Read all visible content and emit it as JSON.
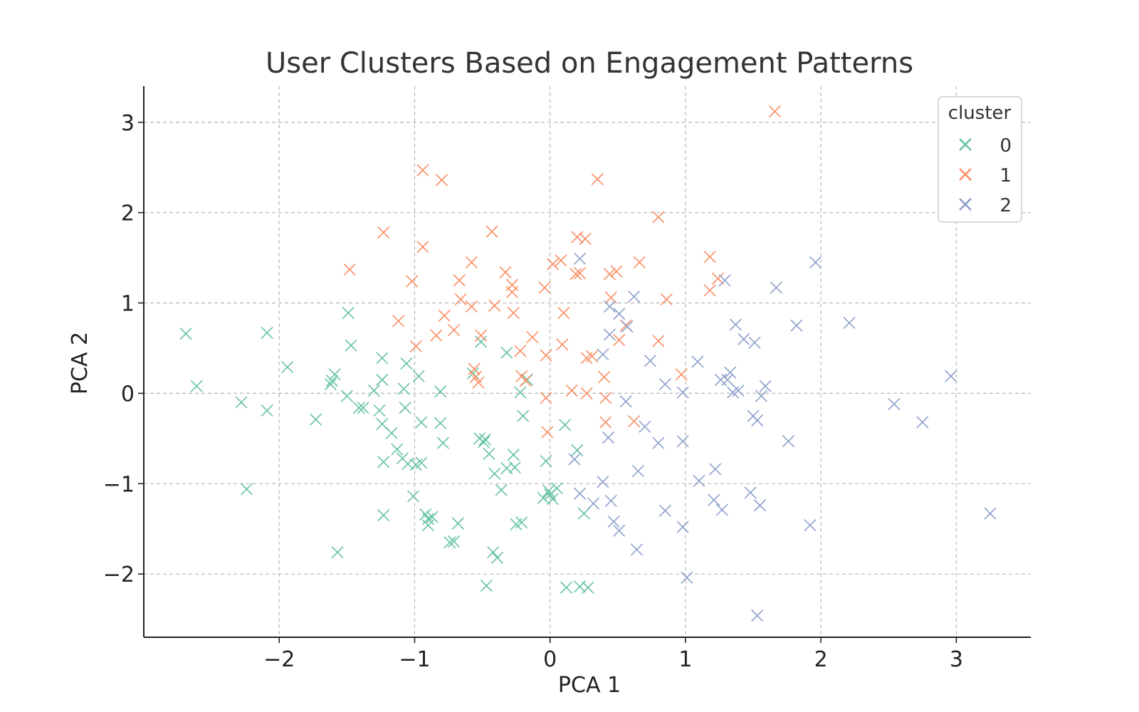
{
  "chart_data": {
    "type": "scatter",
    "title": "User Clusters Based on Engagement Patterns",
    "xlabel": "PCA 1",
    "ylabel": "PCA 2",
    "xlim": [
      -3.0,
      3.55
    ],
    "ylim": [
      -2.7,
      3.4
    ],
    "xticks": [
      -2,
      -1,
      0,
      1,
      2,
      3
    ],
    "yticks": [
      -2,
      -1,
      0,
      1,
      2,
      3
    ],
    "xtick_labels": [
      "−2",
      "−1",
      "0",
      "1",
      "2",
      "3"
    ],
    "ytick_labels": [
      "−2",
      "−1",
      "0",
      "1",
      "2",
      "3"
    ],
    "grid": true,
    "marker": "x",
    "legend": {
      "title": "cluster",
      "placement": "top-right"
    },
    "series": [
      {
        "name": "0",
        "color": "#66c2a5",
        "points": [
          [
            -2.69,
            0.66
          ],
          [
            -2.61,
            0.08
          ],
          [
            -2.28,
            -0.1
          ],
          [
            -2.24,
            -1.06
          ],
          [
            -2.09,
            0.67
          ],
          [
            -2.09,
            -0.19
          ],
          [
            -1.94,
            0.29
          ],
          [
            -1.73,
            -0.29
          ],
          [
            -1.59,
            0.21
          ],
          [
            -1.61,
            0.14
          ],
          [
            -1.62,
            0.1
          ],
          [
            -1.57,
            -1.76
          ],
          [
            -1.49,
            0.89
          ],
          [
            -1.47,
            0.53
          ],
          [
            -1.5,
            -0.03
          ],
          [
            -1.41,
            -0.16
          ],
          [
            -1.38,
            -0.16
          ],
          [
            -1.3,
            0.03
          ],
          [
            -1.26,
            -0.19
          ],
          [
            -1.24,
            0.39
          ],
          [
            -1.24,
            0.15
          ],
          [
            -1.24,
            -0.34
          ],
          [
            -1.23,
            -0.76
          ],
          [
            -1.23,
            -1.35
          ],
          [
            -1.17,
            -0.44
          ],
          [
            -1.13,
            -0.62
          ],
          [
            -1.08,
            0.05
          ],
          [
            -1.06,
            0.33
          ],
          [
            -1.07,
            -0.16
          ],
          [
            -1.09,
            -0.72
          ],
          [
            -1.05,
            -0.78
          ],
          [
            -1.01,
            -1.14
          ],
          [
            -0.99,
            -0.79
          ],
          [
            -0.97,
            0.19
          ],
          [
            -0.95,
            -0.32
          ],
          [
            -0.95,
            -0.77
          ],
          [
            -0.92,
            -1.34
          ],
          [
            -0.9,
            -1.46
          ],
          [
            -0.9,
            -1.39
          ],
          [
            -0.87,
            -1.37
          ],
          [
            -0.81,
            0.02
          ],
          [
            -0.81,
            -0.33
          ],
          [
            -0.79,
            -0.55
          ],
          [
            -0.74,
            -1.65
          ],
          [
            -0.71,
            -1.64
          ],
          [
            -0.68,
            -1.44
          ],
          [
            -0.57,
            0.22
          ],
          [
            -0.51,
            0.57
          ],
          [
            -0.52,
            -0.5
          ],
          [
            -0.49,
            -0.54
          ],
          [
            -0.48,
            -0.51
          ],
          [
            -0.47,
            -2.13
          ],
          [
            -0.45,
            -0.67
          ],
          [
            -0.41,
            -0.89
          ],
          [
            -0.42,
            -1.76
          ],
          [
            -0.39,
            -1.82
          ],
          [
            -0.36,
            -1.07
          ],
          [
            -0.32,
            -0.83
          ],
          [
            -0.32,
            0.45
          ],
          [
            -0.27,
            -0.68
          ],
          [
            -0.26,
            -0.82
          ],
          [
            -0.25,
            -1.45
          ],
          [
            -0.21,
            -1.43
          ],
          [
            -0.22,
            0.01
          ],
          [
            -0.2,
            -0.25
          ],
          [
            -0.17,
            0.15
          ],
          [
            -0.05,
            -1.16
          ],
          [
            -0.03,
            -0.75
          ],
          [
            -0.01,
            -1.08
          ],
          [
            0.0,
            -1.12
          ],
          [
            0.02,
            -1.17
          ],
          [
            0.05,
            -1.05
          ],
          [
            0.11,
            -0.35
          ],
          [
            0.12,
            -2.15
          ],
          [
            0.2,
            -0.63
          ],
          [
            0.22,
            -2.14
          ],
          [
            0.25,
            -1.33
          ],
          [
            0.28,
            -2.15
          ]
        ]
      },
      {
        "name": "1",
        "color": "#fc8d62",
        "points": [
          [
            -1.48,
            1.37
          ],
          [
            -1.23,
            1.78
          ],
          [
            -1.12,
            0.8
          ],
          [
            -1.02,
            1.24
          ],
          [
            -0.99,
            0.52
          ],
          [
            -0.94,
            2.47
          ],
          [
            -0.94,
            1.62
          ],
          [
            -0.8,
            2.36
          ],
          [
            -0.84,
            0.64
          ],
          [
            -0.78,
            0.86
          ],
          [
            -0.71,
            0.7
          ],
          [
            -0.67,
            1.25
          ],
          [
            -0.66,
            1.04
          ],
          [
            -0.58,
            1.45
          ],
          [
            -0.58,
            0.96
          ],
          [
            -0.56,
            0.27
          ],
          [
            -0.55,
            0.18
          ],
          [
            -0.53,
            0.12
          ],
          [
            -0.51,
            0.64
          ],
          [
            -0.43,
            1.79
          ],
          [
            -0.41,
            0.97
          ],
          [
            -0.33,
            1.34
          ],
          [
            -0.28,
            1.2
          ],
          [
            -0.28,
            1.12
          ],
          [
            -0.27,
            0.89
          ],
          [
            -0.22,
            0.47
          ],
          [
            -0.21,
            0.19
          ],
          [
            -0.18,
            0.14
          ],
          [
            -0.13,
            0.62
          ],
          [
            -0.04,
            1.17
          ],
          [
            -0.03,
            0.42
          ],
          [
            -0.03,
            -0.05
          ],
          [
            -0.02,
            -0.43
          ],
          [
            0.02,
            1.43
          ],
          [
            0.08,
            1.47
          ],
          [
            0.09,
            0.54
          ],
          [
            0.1,
            0.89
          ],
          [
            0.16,
            0.03
          ],
          [
            0.19,
            1.32
          ],
          [
            0.2,
            1.73
          ],
          [
            0.22,
            1.33
          ],
          [
            0.26,
            1.71
          ],
          [
            0.27,
            0.39
          ],
          [
            0.31,
            0.41
          ],
          [
            0.27,
            0.0
          ],
          [
            0.35,
            2.37
          ],
          [
            0.4,
            0.18
          ],
          [
            0.41,
            -0.05
          ],
          [
            0.41,
            -0.32
          ],
          [
            0.44,
            1.32
          ],
          [
            0.45,
            1.06
          ],
          [
            0.49,
            1.35
          ],
          [
            0.51,
            0.59
          ],
          [
            0.56,
            0.75
          ],
          [
            0.62,
            -0.31
          ],
          [
            0.66,
            1.45
          ],
          [
            0.8,
            1.95
          ],
          [
            0.8,
            0.58
          ],
          [
            0.86,
            1.04
          ],
          [
            0.97,
            0.21
          ],
          [
            1.18,
            1.14
          ],
          [
            1.18,
            1.51
          ],
          [
            1.24,
            1.27
          ],
          [
            1.66,
            3.12
          ]
        ]
      },
      {
        "name": "2",
        "color": "#8da0cb",
        "points": [
          [
            0.18,
            -0.73
          ],
          [
            0.22,
            1.49
          ],
          [
            0.22,
            -1.11
          ],
          [
            0.32,
            -1.22
          ],
          [
            0.39,
            0.43
          ],
          [
            0.39,
            -0.98
          ],
          [
            0.43,
            -0.49
          ],
          [
            0.44,
            0.96
          ],
          [
            0.44,
            0.65
          ],
          [
            0.45,
            -1.19
          ],
          [
            0.47,
            -1.42
          ],
          [
            0.51,
            0.88
          ],
          [
            0.51,
            -1.52
          ],
          [
            0.56,
            -0.09
          ],
          [
            0.57,
            0.74
          ],
          [
            0.62,
            1.07
          ],
          [
            0.65,
            -0.86
          ],
          [
            0.64,
            -1.73
          ],
          [
            0.7,
            -0.37
          ],
          [
            0.74,
            0.36
          ],
          [
            0.8,
            -0.55
          ],
          [
            0.85,
            0.1
          ],
          [
            0.85,
            -1.3
          ],
          [
            0.98,
            0.01
          ],
          [
            0.98,
            -0.53
          ],
          [
            0.98,
            -1.48
          ],
          [
            1.01,
            -2.04
          ],
          [
            1.09,
            0.35
          ],
          [
            1.1,
            -0.97
          ],
          [
            1.21,
            -1.18
          ],
          [
            1.22,
            -0.84
          ],
          [
            1.26,
            0.15
          ],
          [
            1.27,
            -1.29
          ],
          [
            1.29,
            1.25
          ],
          [
            1.31,
            0.15
          ],
          [
            1.33,
            0.23
          ],
          [
            1.35,
            0.01
          ],
          [
            1.37,
            0.76
          ],
          [
            1.39,
            0.03
          ],
          [
            1.43,
            0.6
          ],
          [
            1.48,
            -1.1
          ],
          [
            1.5,
            -0.25
          ],
          [
            1.51,
            0.56
          ],
          [
            1.53,
            -2.46
          ],
          [
            1.53,
            -0.3
          ],
          [
            1.55,
            -1.24
          ],
          [
            1.56,
            -0.03
          ],
          [
            1.59,
            0.08
          ],
          [
            1.67,
            1.17
          ],
          [
            1.76,
            -0.53
          ],
          [
            1.82,
            0.75
          ],
          [
            1.92,
            -1.46
          ],
          [
            1.96,
            1.45
          ],
          [
            2.21,
            0.78
          ],
          [
            2.54,
            -0.12
          ],
          [
            2.75,
            -0.32
          ],
          [
            2.96,
            0.19
          ],
          [
            3.25,
            -1.33
          ]
        ]
      }
    ]
  }
}
